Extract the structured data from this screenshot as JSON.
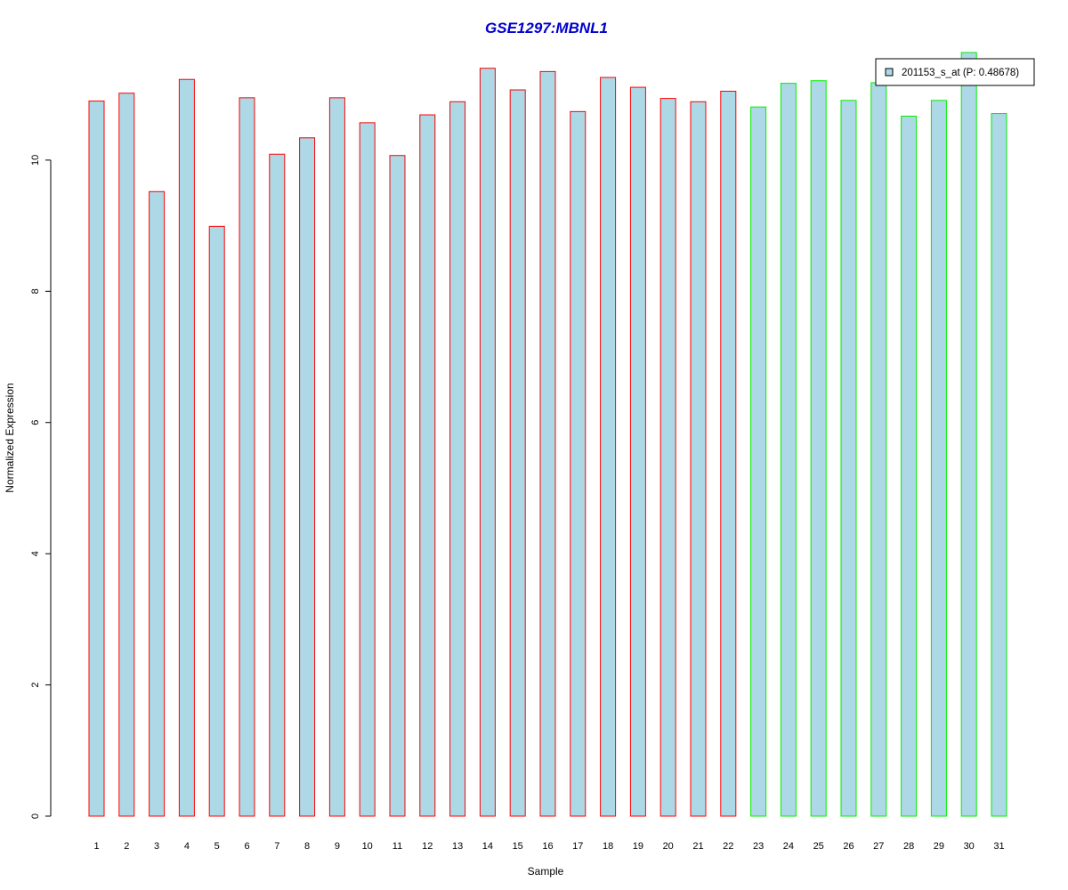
{
  "chart_data": {
    "type": "bar",
    "title": "GSE1297:MBNL1",
    "xlabel": "Sample",
    "ylabel": "Normalized Expression",
    "categories": [
      "1",
      "2",
      "3",
      "4",
      "5",
      "6",
      "7",
      "8",
      "9",
      "10",
      "11",
      "12",
      "13",
      "14",
      "15",
      "16",
      "17",
      "18",
      "19",
      "20",
      "21",
      "22",
      "23",
      "24",
      "25",
      "26",
      "27",
      "28",
      "29",
      "30",
      "31"
    ],
    "values": [
      10.9,
      11.02,
      9.52,
      11.23,
      8.99,
      10.95,
      10.09,
      10.34,
      10.95,
      10.57,
      10.07,
      10.69,
      10.89,
      11.4,
      11.07,
      11.35,
      10.74,
      11.26,
      11.11,
      10.94,
      10.89,
      11.05,
      10.81,
      11.17,
      11.21,
      10.91,
      11.18,
      10.67,
      10.91,
      11.64,
      10.71
    ],
    "groups": [
      "1",
      "1",
      "1",
      "1",
      "1",
      "1",
      "1",
      "1",
      "1",
      "1",
      "1",
      "1",
      "1",
      "1",
      "1",
      "1",
      "1",
      "1",
      "1",
      "1",
      "1",
      "1",
      "2",
      "2",
      "2",
      "2",
      "2",
      "2",
      "2",
      "2",
      "2"
    ],
    "ylim": [
      0,
      11.64
    ],
    "yticks": [
      0,
      2,
      4,
      6,
      8,
      10
    ],
    "grid": false,
    "legend": {
      "position": "top-right",
      "label": "201153_s_at (P: 0.48678)"
    },
    "colors": {
      "bar_fill": "#add8e6",
      "group1_border": "#ff0000",
      "group2_border": "#00ee00",
      "title": "#0000cd"
    }
  }
}
